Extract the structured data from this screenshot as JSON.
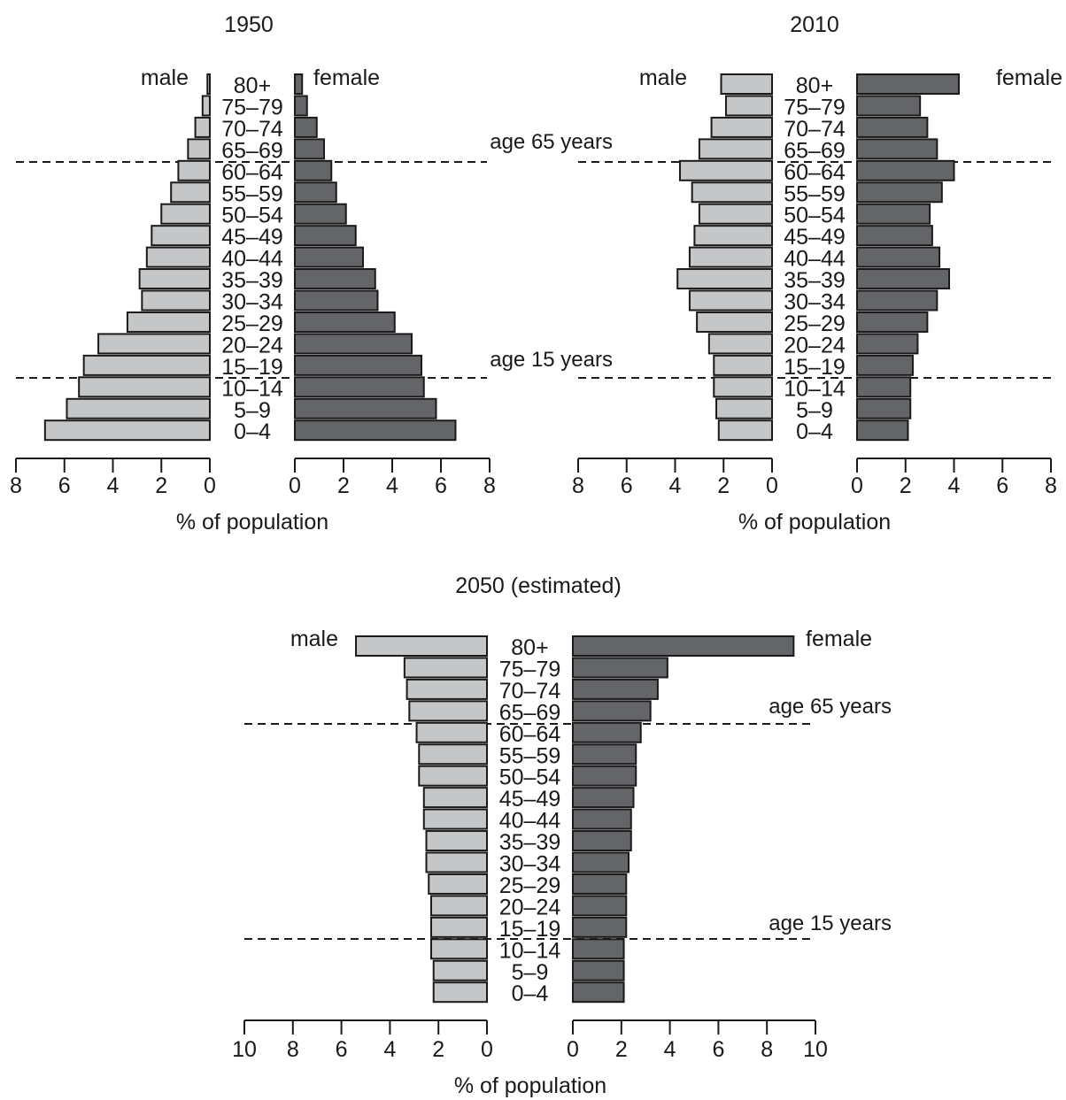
{
  "chart_data": [
    {
      "type": "population-pyramid",
      "title": "1950",
      "xlabel": "% of population",
      "male_label": "male",
      "female_label": "female",
      "annotations": [
        "age 65 years",
        "age 15 years"
      ],
      "xlim": [
        0,
        8
      ],
      "ticks": [
        0,
        2,
        4,
        6,
        8
      ],
      "categories": [
        "80+",
        "75–79",
        "70–74",
        "65–69",
        "60–64",
        "55–59",
        "50–54",
        "45–49",
        "40–44",
        "35–39",
        "30–34",
        "25–29",
        "20–24",
        "15–19",
        "10–14",
        "5–9",
        "0–4"
      ],
      "series": [
        {
          "name": "male",
          "color": "#c4c6c8",
          "values": [
            0.1,
            0.3,
            0.6,
            0.9,
            1.3,
            1.6,
            2.0,
            2.4,
            2.6,
            2.9,
            2.8,
            3.4,
            4.6,
            5.2,
            5.4,
            5.9,
            6.8
          ]
        },
        {
          "name": "female",
          "color": "#646568",
          "values": [
            0.3,
            0.5,
            0.9,
            1.2,
            1.5,
            1.7,
            2.1,
            2.5,
            2.8,
            3.3,
            3.4,
            4.1,
            4.8,
            5.2,
            5.3,
            5.8,
            6.6
          ]
        }
      ]
    },
    {
      "type": "population-pyramid",
      "title": "2010",
      "xlabel": "% of population",
      "male_label": "male",
      "female_label": "female",
      "annotations": [],
      "xlim": [
        0,
        8
      ],
      "ticks": [
        0,
        2,
        4,
        6,
        8
      ],
      "categories": [
        "80+",
        "75–79",
        "70–74",
        "65–69",
        "60–64",
        "55–59",
        "50–54",
        "45–49",
        "40–44",
        "35–39",
        "30–34",
        "25–29",
        "20–24",
        "15–19",
        "10–14",
        "5–9",
        "0–4"
      ],
      "series": [
        {
          "name": "male",
          "color": "#c4c6c8",
          "values": [
            2.1,
            1.9,
            2.5,
            3.0,
            3.8,
            3.3,
            3.0,
            3.2,
            3.4,
            3.9,
            3.4,
            3.1,
            2.6,
            2.4,
            2.4,
            2.3,
            2.2
          ]
        },
        {
          "name": "female",
          "color": "#646568",
          "values": [
            4.2,
            2.6,
            2.9,
            3.3,
            4.0,
            3.5,
            3.0,
            3.1,
            3.4,
            3.8,
            3.3,
            2.9,
            2.5,
            2.3,
            2.2,
            2.2,
            2.1
          ]
        }
      ]
    },
    {
      "type": "population-pyramid",
      "title": "2050 (estimated)",
      "xlabel": "% of population",
      "male_label": "male",
      "female_label": "female",
      "annotations": [
        "age 65 years",
        "age 15 years"
      ],
      "xlim": [
        0,
        10
      ],
      "ticks": [
        0,
        2,
        4,
        6,
        8,
        10
      ],
      "categories": [
        "80+",
        "75–79",
        "70–74",
        "65–69",
        "60–64",
        "55–59",
        "50–54",
        "45–49",
        "40–44",
        "35–39",
        "30–34",
        "25–29",
        "20–24",
        "15–19",
        "10–14",
        "5–9",
        "0–4"
      ],
      "series": [
        {
          "name": "male",
          "color": "#c4c6c8",
          "values": [
            5.4,
            3.4,
            3.3,
            3.2,
            2.9,
            2.8,
            2.8,
            2.6,
            2.6,
            2.5,
            2.5,
            2.4,
            2.3,
            2.3,
            2.3,
            2.2,
            2.2
          ]
        },
        {
          "name": "female",
          "color": "#646568",
          "values": [
            9.1,
            3.9,
            3.5,
            3.2,
            2.8,
            2.6,
            2.6,
            2.5,
            2.4,
            2.4,
            2.3,
            2.2,
            2.2,
            2.2,
            2.1,
            2.1,
            2.1
          ]
        }
      ]
    }
  ]
}
